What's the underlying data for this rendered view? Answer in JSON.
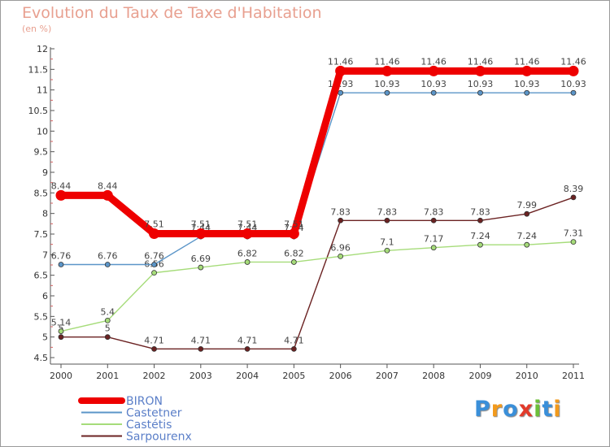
{
  "title": "Evolution du Taux de Taxe d'Habitation",
  "subtitle": "(en %)",
  "logo": {
    "text": "Proxiti",
    "letters": [
      "P",
      "r",
      "o",
      "x",
      "i",
      "t",
      "i"
    ],
    "colors": [
      "#3a8fd9",
      "#f29a1c",
      "#3a8fd9",
      "#e23a2a",
      "#6cbf3a",
      "#3a8fd9",
      "#f29a1c"
    ]
  },
  "chart_data": {
    "type": "line",
    "x": [
      "2000",
      "2001",
      "2002",
      "2003",
      "2004",
      "2005",
      "2006",
      "2007",
      "2008",
      "2009",
      "2010",
      "2011"
    ],
    "ylim": [
      4.5,
      12
    ],
    "yticks": [
      "4.5",
      "5",
      "5.5",
      "6",
      "6.5",
      "7",
      "7.5",
      "8",
      "8.5",
      "9",
      "9.5",
      "10",
      "10.5",
      "11",
      "11.5",
      "12"
    ],
    "grid": false,
    "legend_position": "bottom-left",
    "series": [
      {
        "name": "BIRON",
        "color": "#ee0000",
        "values": [
          8.44,
          8.44,
          7.51,
          7.51,
          7.51,
          7.51,
          11.46,
          11.46,
          11.46,
          11.46,
          11.46,
          11.46
        ],
        "labels": [
          "8.44",
          "8.44",
          "7.51",
          "7.51",
          "7.51",
          "7.51",
          "11.46",
          "11.46",
          "11.46",
          "11.46",
          "11.46",
          "11.46"
        ]
      },
      {
        "name": "Castetner",
        "color": "#5b95c8",
        "values": [
          6.76,
          6.76,
          6.76,
          7.44,
          7.44,
          7.44,
          10.93,
          10.93,
          10.93,
          10.93,
          10.93,
          10.93
        ],
        "labels": [
          "6.76",
          "6.76",
          "6.76",
          "7.44",
          "7.44",
          "7.44",
          "10.93",
          "10.93",
          "10.93",
          "10.93",
          "10.93",
          "10.93"
        ]
      },
      {
        "name": "Castétis",
        "color": "#a6dc7a",
        "values": [
          5.14,
          5.4,
          6.56,
          6.69,
          6.82,
          6.82,
          6.96,
          7.1,
          7.17,
          7.24,
          7.24,
          7.31
        ],
        "labels": [
          "5.14",
          "5.4",
          "6.56",
          "6.69",
          "6.82",
          "6.82",
          "6.96",
          "7.1",
          "7.17",
          "7.24",
          "7.24",
          "7.31"
        ]
      },
      {
        "name": "Sarpourenx",
        "color": "#6b2222",
        "values": [
          5,
          5,
          4.71,
          4.71,
          4.71,
          4.71,
          7.83,
          7.83,
          7.83,
          7.83,
          7.99,
          8.39
        ],
        "labels": [
          "5",
          "5",
          "4.71",
          "4.71",
          "4.71",
          "4.71",
          "7.83",
          "7.83",
          "7.83",
          "7.83",
          "7.99",
          "8.39"
        ]
      }
    ]
  }
}
